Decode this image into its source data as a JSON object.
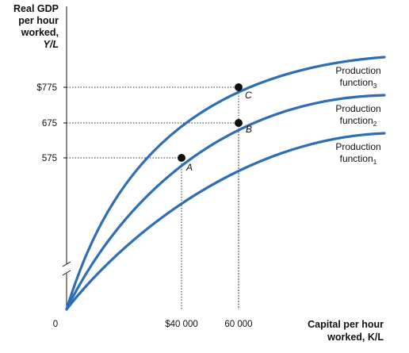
{
  "chart_data": {
    "type": "line",
    "ylabel_lines": [
      "Real GDP",
      "per hour",
      "worked,",
      "Y/L"
    ],
    "xlabel_lines": [
      "Capital per hour",
      "worked, K/L"
    ],
    "origin_label": "0",
    "x_ticks": [
      {
        "value": 40000,
        "label": "$40 000"
      },
      {
        "value": 60000,
        "label": "60 000"
      }
    ],
    "y_ticks": [
      {
        "value": 575,
        "label": "575"
      },
      {
        "value": 675,
        "label": "675"
      },
      {
        "value": 775,
        "label": "$775"
      }
    ],
    "series": [
      {
        "name": "Production function",
        "subscript": "3",
        "color": "#2f6db5"
      },
      {
        "name": "Production function",
        "subscript": "2",
        "color": "#2f6db5"
      },
      {
        "name": "Production function",
        "subscript": "1",
        "color": "#2f6db5"
      }
    ],
    "points": [
      {
        "label": "A",
        "x": 40000,
        "y": 575
      },
      {
        "label": "B",
        "x": 60000,
        "y": 675
      },
      {
        "label": "C",
        "x": 60000,
        "y": 775
      }
    ],
    "axis_break": true
  }
}
